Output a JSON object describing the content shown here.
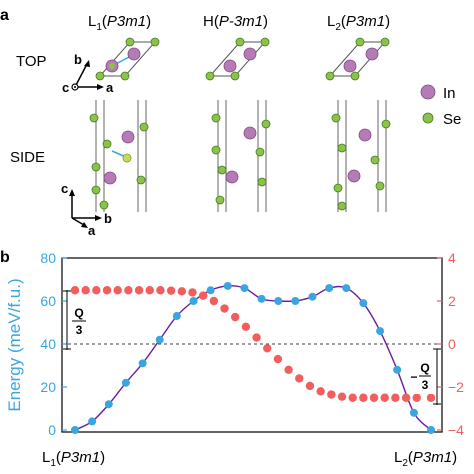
{
  "top": {
    "edge_letter": "a",
    "phases": [
      {
        "pre": "L",
        "sub": "1",
        "group": "P3m1"
      },
      {
        "pre": "H",
        "sub": "",
        "group": "P-3m1"
      },
      {
        "pre": "L",
        "sub": "2",
        "group": "P3m1"
      }
    ],
    "row_top": "TOP",
    "row_side": "SIDE",
    "axes_top": {
      "c": "c",
      "a": "a",
      "b": "b"
    },
    "axes_side": {
      "c": "c",
      "a": "a",
      "b": "b"
    },
    "legend": [
      {
        "label": "In",
        "color": "#b57bb6"
      },
      {
        "label": "Se",
        "color": "#8bc34a"
      }
    ]
  },
  "bottom": {
    "edge_letter": "b",
    "quarter": {
      "num": "Q",
      "den": "3"
    },
    "neg_quarter": {
      "sign": "−",
      "num": "Q",
      "den": "3"
    },
    "x_labels": [
      {
        "pre": "L",
        "sub": "1",
        "group": "P3m1"
      },
      {
        "pre": "L",
        "sub": "2",
        "group": "P3m1"
      }
    ]
  },
  "chart_data": {
    "type": "line",
    "title": "",
    "xlabel": "",
    "ylabel": "Energy (meV/f.u.)",
    "y2label": "",
    "ylim": [
      0,
      80
    ],
    "y2lim": [
      -4,
      4
    ],
    "xlim": [
      0,
      1
    ],
    "yticks": [
      "0",
      "20",
      "40",
      "60",
      "80"
    ],
    "y2ticks": [
      "−4",
      "−2",
      "0",
      "2",
      "4"
    ],
    "dashed_line_y": 40,
    "colors": {
      "energy": "#3aa6e0",
      "curve": "#6a1b9a",
      "polarization": "#f25d5d",
      "right_axis": "#f25d5d"
    },
    "series": [
      {
        "axis": "left",
        "x": [
          0,
          0.048,
          0.095,
          0.143,
          0.19,
          0.238,
          0.286,
          0.333,
          0.381,
          0.429,
          0.476,
          0.524,
          0.571,
          0.619,
          0.667,
          0.714,
          0.762,
          0.81,
          0.857,
          0.905,
          0.952,
          1.0
        ],
        "values": [
          0,
          4,
          12,
          22,
          31,
          42,
          53,
          60,
          65,
          67,
          66,
          61,
          60,
          60,
          62,
          66,
          66,
          59,
          46,
          28,
          8,
          0
        ]
      },
      {
        "axis": "right",
        "x": [
          0,
          0.03,
          0.06,
          0.09,
          0.12,
          0.15,
          0.18,
          0.21,
          0.24,
          0.27,
          0.3,
          0.33,
          0.36,
          0.39,
          0.42,
          0.45,
          0.48,
          0.51,
          0.54,
          0.57,
          0.6,
          0.63,
          0.66,
          0.69,
          0.72,
          0.75,
          0.78,
          0.81,
          0.84,
          0.87,
          0.9,
          0.93,
          0.96,
          1.0
        ],
        "values": [
          2.5,
          2.5,
          2.5,
          2.5,
          2.5,
          2.5,
          2.5,
          2.5,
          2.5,
          2.48,
          2.45,
          2.4,
          2.25,
          2.0,
          1.65,
          1.25,
          0.8,
          0.3,
          -0.2,
          -0.7,
          -1.2,
          -1.6,
          -1.95,
          -2.2,
          -2.35,
          -2.45,
          -2.5,
          -2.5,
          -2.5,
          -2.5,
          -2.5,
          -2.5,
          -2.5,
          -2.5
        ]
      }
    ]
  }
}
